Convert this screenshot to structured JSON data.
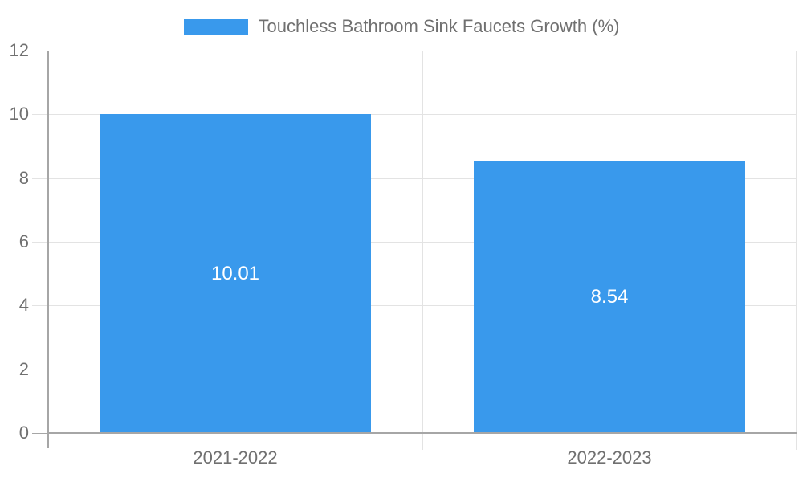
{
  "legend": {
    "label": "Touchless Bathroom Sink Faucets Growth (%)"
  },
  "chart_data": {
    "type": "bar",
    "title": "Touchless Bathroom Sink Faucets Growth (%)",
    "categories": [
      "2021-2022",
      "2022-2023"
    ],
    "values": [
      10.01,
      8.54
    ],
    "value_labels": [
      "10.01",
      "8.54"
    ],
    "xlabel": "",
    "ylabel": "",
    "ylim": [
      0,
      12
    ],
    "yticks": [
      0,
      2,
      4,
      6,
      8,
      10,
      12
    ],
    "grid": true,
    "legend_position": "top"
  },
  "colors": {
    "bar": "#3999ec",
    "grid": "#e3e3e3",
    "axis": "#a6a6a6",
    "text": "#707070",
    "value_label": "#ffffff"
  }
}
